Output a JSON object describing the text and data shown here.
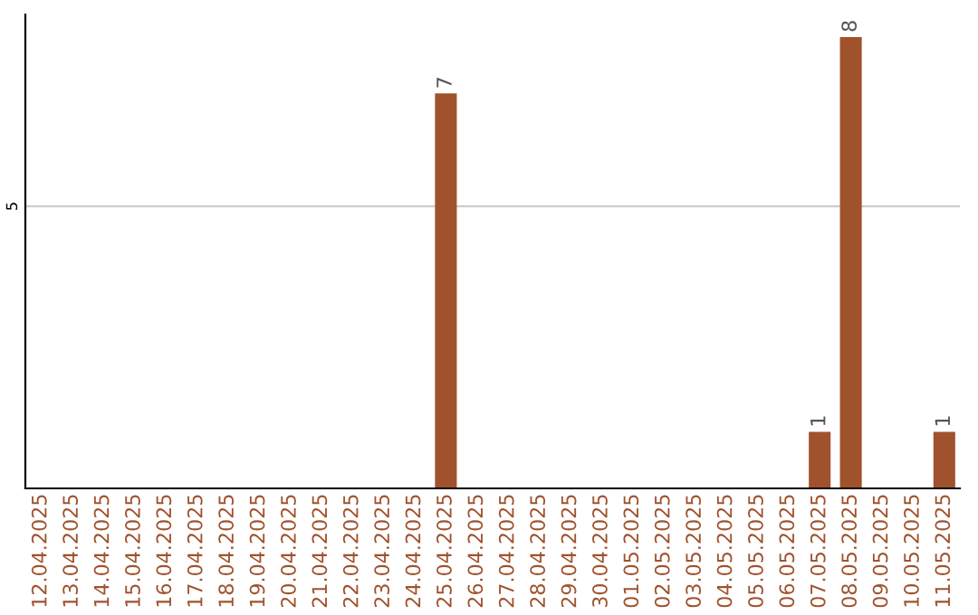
{
  "chart_data": {
    "type": "bar",
    "categories": [
      "12.04.2025",
      "13.04.2025",
      "14.04.2025",
      "15.04.2025",
      "16.04.2025",
      "17.04.2025",
      "18.04.2025",
      "19.04.2025",
      "20.04.2025",
      "21.04.2025",
      "22.04.2025",
      "23.04.2025",
      "24.04.2025",
      "25.04.2025",
      "26.04.2025",
      "27.04.2025",
      "28.04.2025",
      "29.04.2025",
      "30.04.2025",
      "01.05.2025",
      "02.05.2025",
      "03.05.2025",
      "04.05.2025",
      "05.05.2025",
      "06.05.2025",
      "07.05.2025",
      "08.05.2025",
      "09.05.2025",
      "10.05.2025",
      "11.05.2025"
    ],
    "values": [
      null,
      null,
      null,
      null,
      null,
      null,
      null,
      null,
      null,
      null,
      null,
      null,
      null,
      7,
      null,
      null,
      null,
      null,
      null,
      null,
      null,
      null,
      null,
      null,
      null,
      1,
      8,
      null,
      null,
      1
    ],
    "value_labels": [
      null,
      null,
      null,
      null,
      null,
      null,
      null,
      null,
      null,
      null,
      null,
      null,
      null,
      "7",
      null,
      null,
      null,
      null,
      null,
      null,
      null,
      null,
      null,
      null,
      null,
      "1",
      "8",
      null,
      null,
      "1"
    ],
    "color": "#a0522d",
    "ylim": [
      0,
      8.4
    ],
    "yticks": [
      5
    ],
    "grid": "y"
  }
}
